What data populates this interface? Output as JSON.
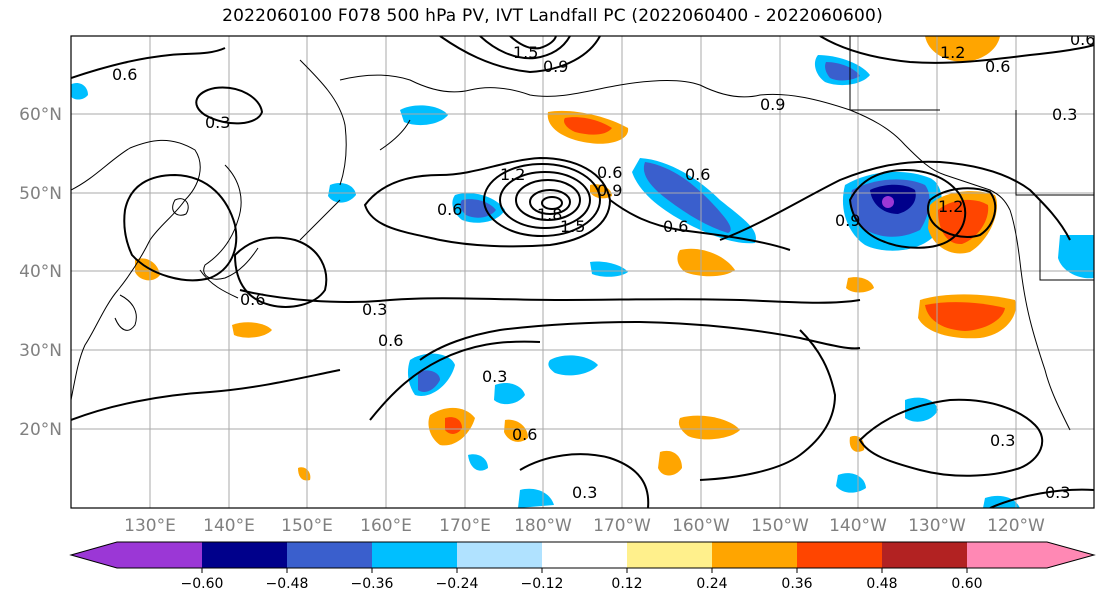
{
  "title": "2022060100 F078 500 hPa PV, IVT Landfall PC (2022060400 - 2022060600)",
  "map": {
    "lat_labels": [
      "60°N",
      "50°N",
      "40°N",
      "30°N",
      "20°N"
    ],
    "lon_labels": [
      "130°E",
      "140°E",
      "150°E",
      "160°E",
      "170°E",
      "180°W",
      "170°W",
      "160°W",
      "150°W",
      "140°W",
      "130°W",
      "120°W"
    ],
    "contour_labels": [
      "0.6",
      "0.3",
      "1.5",
      "0.9",
      "0.6",
      "0.6",
      "0.3",
      "0.6",
      "1.2",
      "0.6",
      "1.8",
      "1.5",
      "0.9",
      "0.6",
      "0.6",
      "0.9",
      "1.2",
      "0.3",
      "0.6",
      "0.3",
      "0.3",
      "0.3",
      "0.3",
      "0.9",
      "0.6",
      "1.2",
      "0.6"
    ],
    "fill_colors": {
      "lt_-0.60": "#9b37d6",
      "-0.60_-0.48": "#00008b",
      "-0.48_-0.36": "#3a5fcd",
      "-0.36_-0.24": "#00bfff",
      "-0.24_-0.12": "#b0e2ff",
      "-0.12_0.12": "#ffffff",
      "0.12_0.24": "#fff08c",
      "0.24_0.36": "#ffa500",
      "0.36_0.48": "#ff4500",
      "0.48_0.60": "#b22222",
      "gt_0.60": "#ff88b4"
    }
  },
  "colorbar": {
    "tick_labels": [
      "−0.60",
      "−0.48",
      "−0.36",
      "−0.24",
      "−0.12",
      "0.12",
      "0.24",
      "0.36",
      "0.48",
      "0.60"
    ]
  }
}
